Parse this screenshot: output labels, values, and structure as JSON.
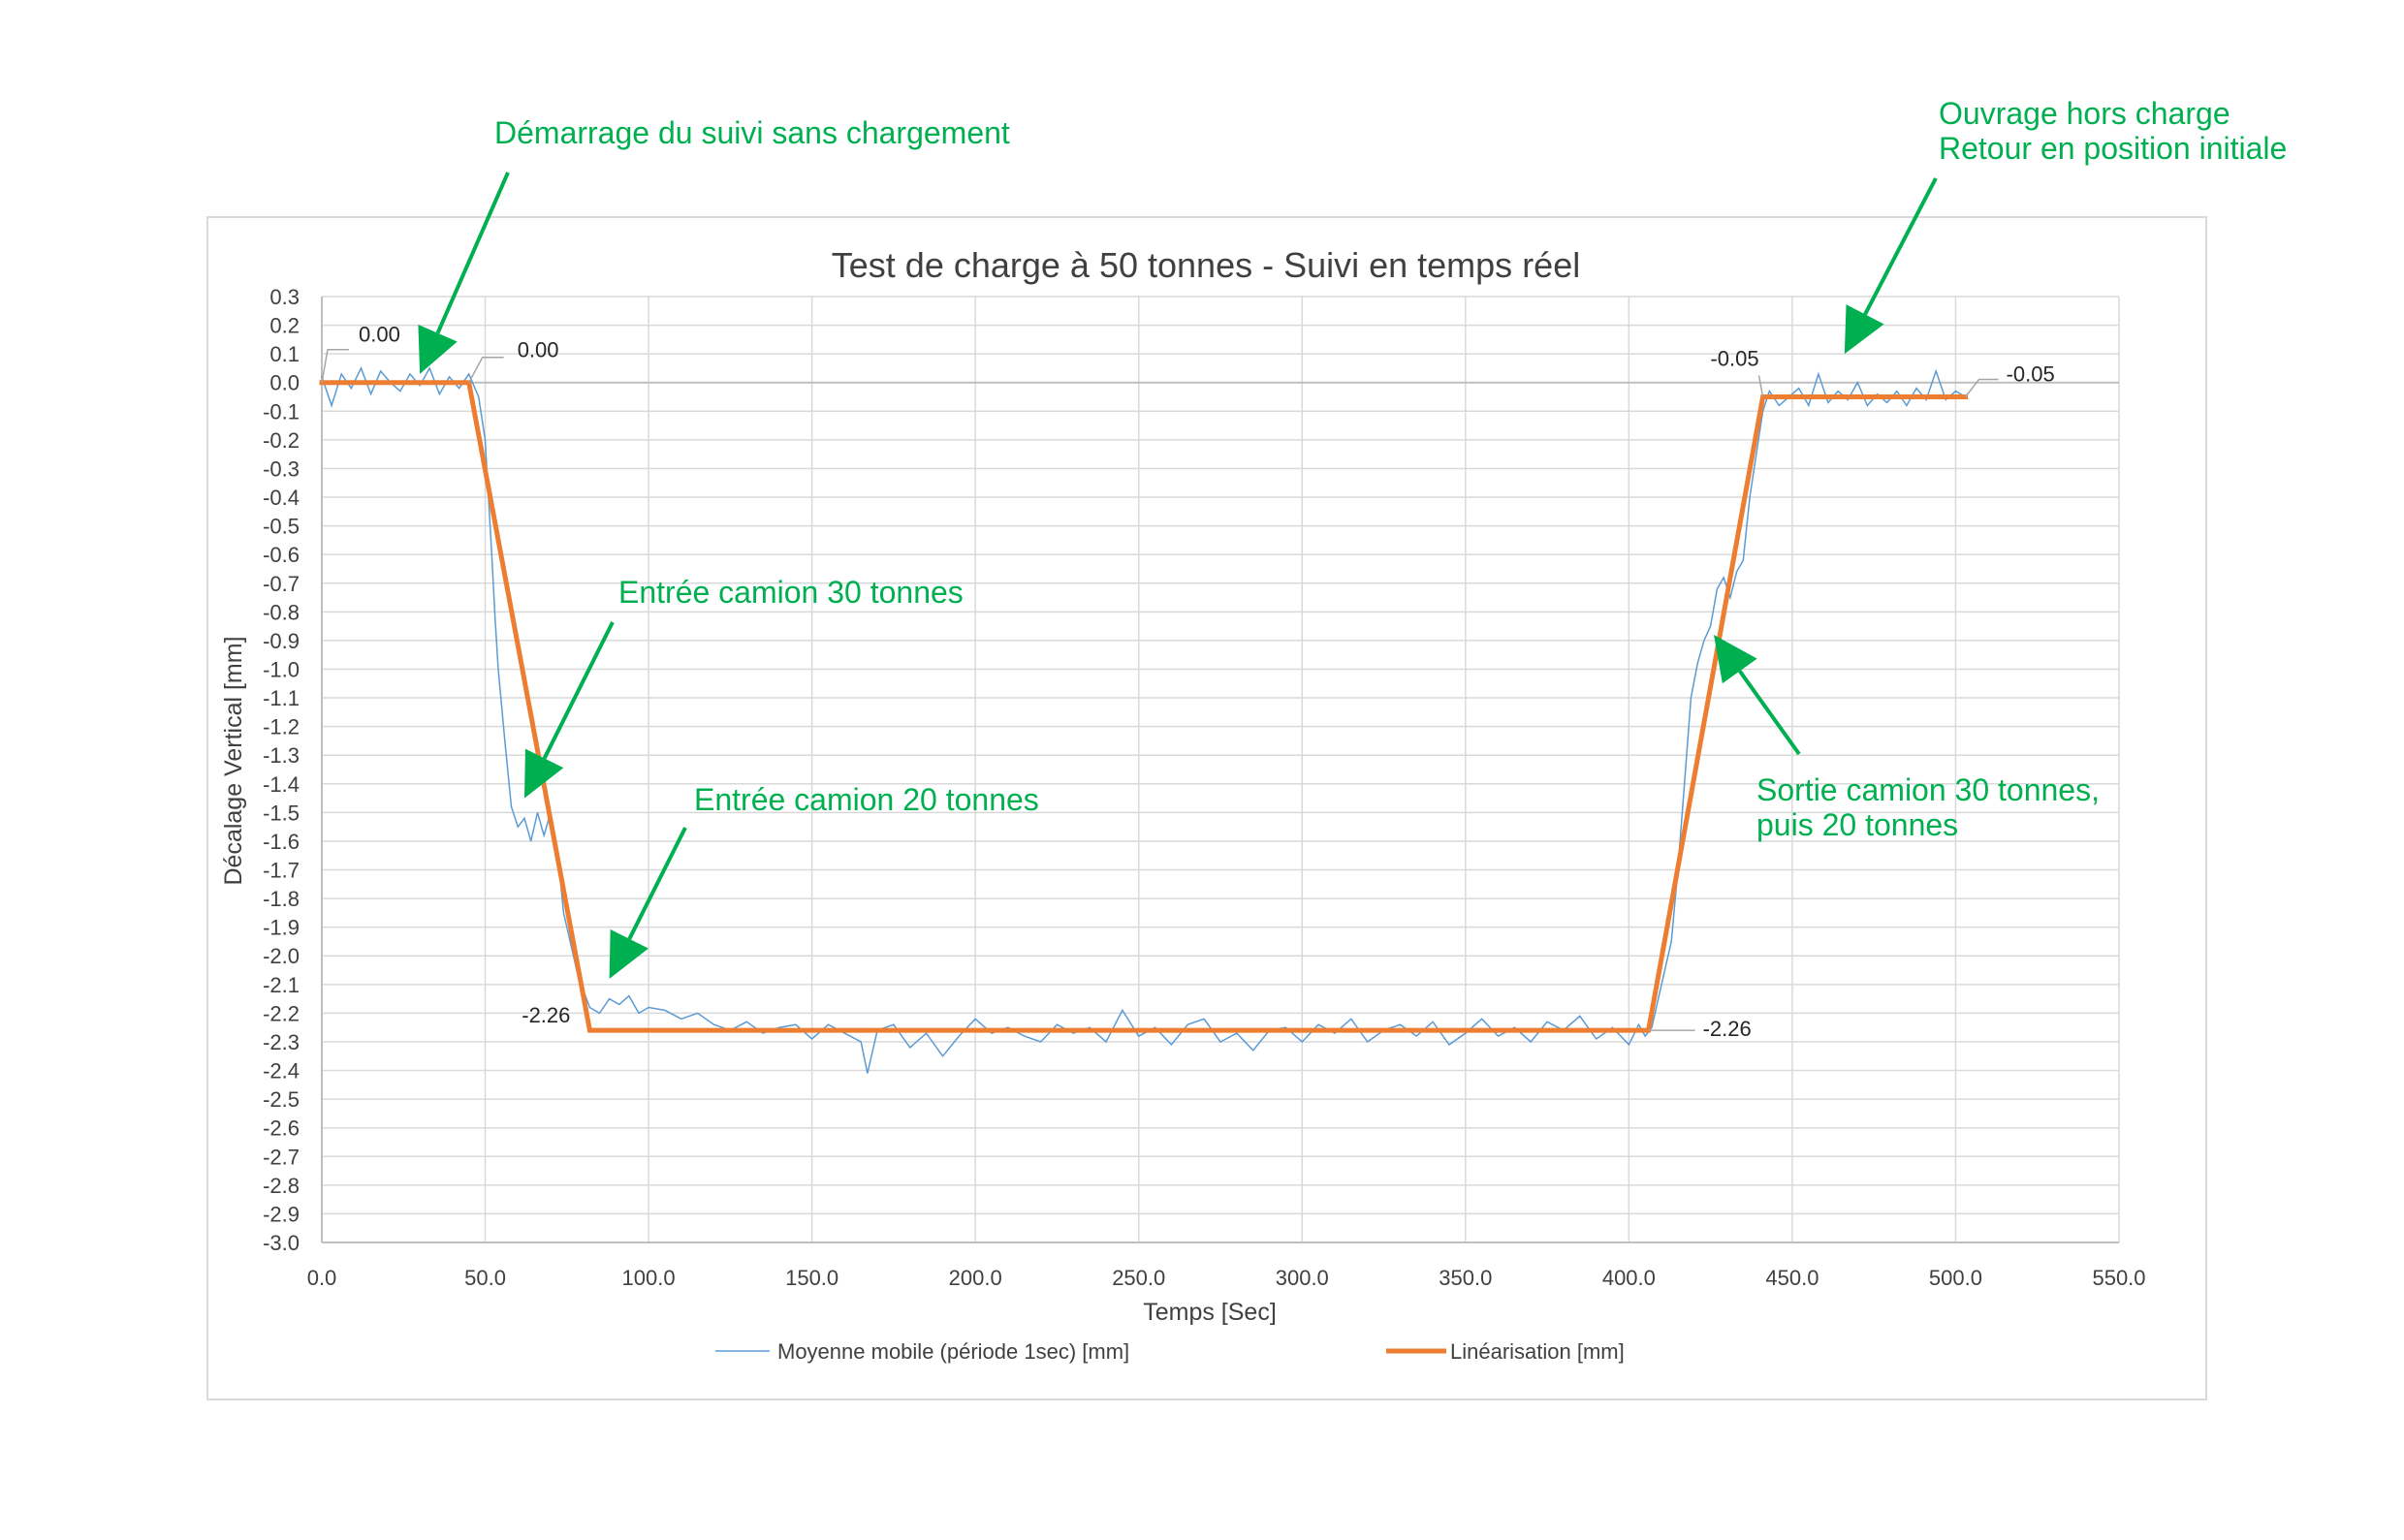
{
  "chart_data": {
    "type": "line",
    "title": "Test de charge à 50 tonnes - Suivi en temps réel",
    "xlabel": "Temps [Sec]",
    "ylabel": "Décalage Vertical [mm]",
    "xlim": [
      0,
      550
    ],
    "ylim": [
      -3.0,
      0.3
    ],
    "x_ticks": [
      "0.0",
      "50.0",
      "100.0",
      "150.0",
      "200.0",
      "250.0",
      "300.0",
      "350.0",
      "400.0",
      "450.0",
      "500.0",
      "550.0"
    ],
    "y_ticks": [
      "0.3",
      "0.2",
      "0.1",
      "0.0",
      "-0.1",
      "-0.2",
      "-0.3",
      "-0.4",
      "-0.5",
      "-0.6",
      "-0.7",
      "-0.8",
      "-0.9",
      "-1.0",
      "-1.1",
      "-1.2",
      "-1.3",
      "-1.4",
      "-1.5",
      "-1.6",
      "-1.7",
      "-1.8",
      "-1.9",
      "-2.0",
      "-2.1",
      "-2.2",
      "-2.3",
      "-2.4",
      "-2.5",
      "-2.6",
      "-2.7",
      "-2.8",
      "-2.9",
      "-3.0"
    ],
    "grid": true,
    "legend_position": "bottom",
    "series": [
      {
        "name": "Moyenne mobile (période 1sec) [mm]",
        "color": "#5b9bd5",
        "x": [
          0,
          3,
          6,
          9,
          12,
          15,
          18,
          21,
          24,
          27,
          30,
          33,
          36,
          39,
          42,
          45,
          48,
          50,
          51,
          52,
          53,
          54,
          56,
          58,
          60,
          62,
          64,
          66,
          68,
          70,
          72,
          74,
          76,
          78,
          80,
          82,
          85,
          88,
          91,
          94,
          97,
          100,
          105,
          110,
          115,
          120,
          125,
          130,
          135,
          140,
          145,
          150,
          155,
          160,
          165,
          167,
          170,
          175,
          180,
          185,
          190,
          195,
          200,
          205,
          210,
          215,
          220,
          225,
          230,
          235,
          240,
          245,
          250,
          255,
          260,
          265,
          270,
          275,
          280,
          285,
          290,
          295,
          300,
          305,
          310,
          315,
          320,
          325,
          330,
          335,
          340,
          345,
          350,
          355,
          360,
          365,
          370,
          375,
          380,
          385,
          390,
          395,
          400,
          403,
          405,
          407,
          409,
          411,
          413,
          415,
          417,
          419,
          421,
          423,
          425,
          427,
          429,
          431,
          433,
          435,
          437,
          439,
          441,
          443,
          446,
          449,
          452,
          455,
          458,
          461,
          464,
          467,
          470,
          473,
          476,
          479,
          482,
          485,
          488,
          491,
          494,
          497,
          500,
          503
        ],
        "y": [
          0.02,
          -0.08,
          0.03,
          -0.02,
          0.05,
          -0.04,
          0.04,
          0.0,
          -0.03,
          0.03,
          -0.01,
          0.05,
          -0.04,
          0.02,
          -0.02,
          0.03,
          -0.05,
          -0.2,
          -0.4,
          -0.6,
          -0.82,
          -1.0,
          -1.25,
          -1.48,
          -1.55,
          -1.52,
          -1.6,
          -1.5,
          -1.58,
          -1.5,
          -1.62,
          -1.85,
          -1.95,
          -2.05,
          -2.12,
          -2.18,
          -2.2,
          -2.15,
          -2.17,
          -2.14,
          -2.2,
          -2.18,
          -2.19,
          -2.22,
          -2.2,
          -2.24,
          -2.26,
          -2.23,
          -2.27,
          -2.25,
          -2.24,
          -2.29,
          -2.24,
          -2.27,
          -2.3,
          -2.41,
          -2.26,
          -2.24,
          -2.32,
          -2.27,
          -2.35,
          -2.28,
          -2.22,
          -2.27,
          -2.25,
          -2.28,
          -2.3,
          -2.24,
          -2.27,
          -2.25,
          -2.3,
          -2.19,
          -2.28,
          -2.25,
          -2.31,
          -2.24,
          -2.22,
          -2.3,
          -2.27,
          -2.33,
          -2.26,
          -2.25,
          -2.3,
          -2.24,
          -2.27,
          -2.22,
          -2.3,
          -2.26,
          -2.24,
          -2.28,
          -2.23,
          -2.31,
          -2.27,
          -2.22,
          -2.28,
          -2.25,
          -2.3,
          -2.23,
          -2.26,
          -2.21,
          -2.29,
          -2.25,
          -2.31,
          -2.24,
          -2.28,
          -2.25,
          -2.15,
          -2.05,
          -1.95,
          -1.7,
          -1.4,
          -1.1,
          -0.98,
          -0.9,
          -0.85,
          -0.72,
          -0.68,
          -0.75,
          -0.66,
          -0.62,
          -0.4,
          -0.25,
          -0.1,
          -0.03,
          -0.08,
          -0.05,
          -0.02,
          -0.08,
          0.03,
          -0.07,
          -0.03,
          -0.06,
          0.0,
          -0.08,
          -0.04,
          -0.07,
          -0.03,
          -0.08,
          -0.02,
          -0.06,
          0.04,
          -0.06,
          -0.03,
          -0.05
        ],
        "line_width": 1.5
      },
      {
        "name": "Linéarisation [mm]",
        "color": "#ed7d31",
        "x": [
          0,
          45,
          82,
          406,
          441,
          503
        ],
        "y": [
          0.0,
          0.0,
          -2.26,
          -2.26,
          -0.05,
          -0.05
        ],
        "line_width": 5
      }
    ],
    "data_labels": [
      {
        "x": 0,
        "y": 0.0,
        "text": "0.00"
      },
      {
        "x": 45,
        "y": 0.0,
        "text": "0.00"
      },
      {
        "x": 82,
        "y": -2.26,
        "text": "-2.26"
      },
      {
        "x": 406,
        "y": -2.26,
        "text": "-2.26"
      },
      {
        "x": 441,
        "y": -0.05,
        "text": "-0.05"
      },
      {
        "x": 503,
        "y": -0.05,
        "text": "-0.05"
      }
    ],
    "annotations": [
      {
        "lines": [
          "Démarrage du suivi sans chargement"
        ],
        "points_to": [
          30,
          0.03
        ]
      },
      {
        "lines": [
          "Ouvrage hors charge",
          "Retour en position initiale"
        ],
        "points_to": [
          466,
          0.1
        ]
      },
      {
        "lines": [
          "Entrée camion 30 tonnes"
        ],
        "points_to": [
          62,
          -1.45
        ]
      },
      {
        "lines": [
          "Entrée camion 20 tonnes"
        ],
        "points_to": [
          88,
          -2.08
        ]
      },
      {
        "lines": [
          "Sortie camion 30 tonnes,",
          "puis 20 tonnes"
        ],
        "points_to": [
          426,
          -0.88
        ]
      }
    ],
    "annotation_color": "#00b050"
  }
}
